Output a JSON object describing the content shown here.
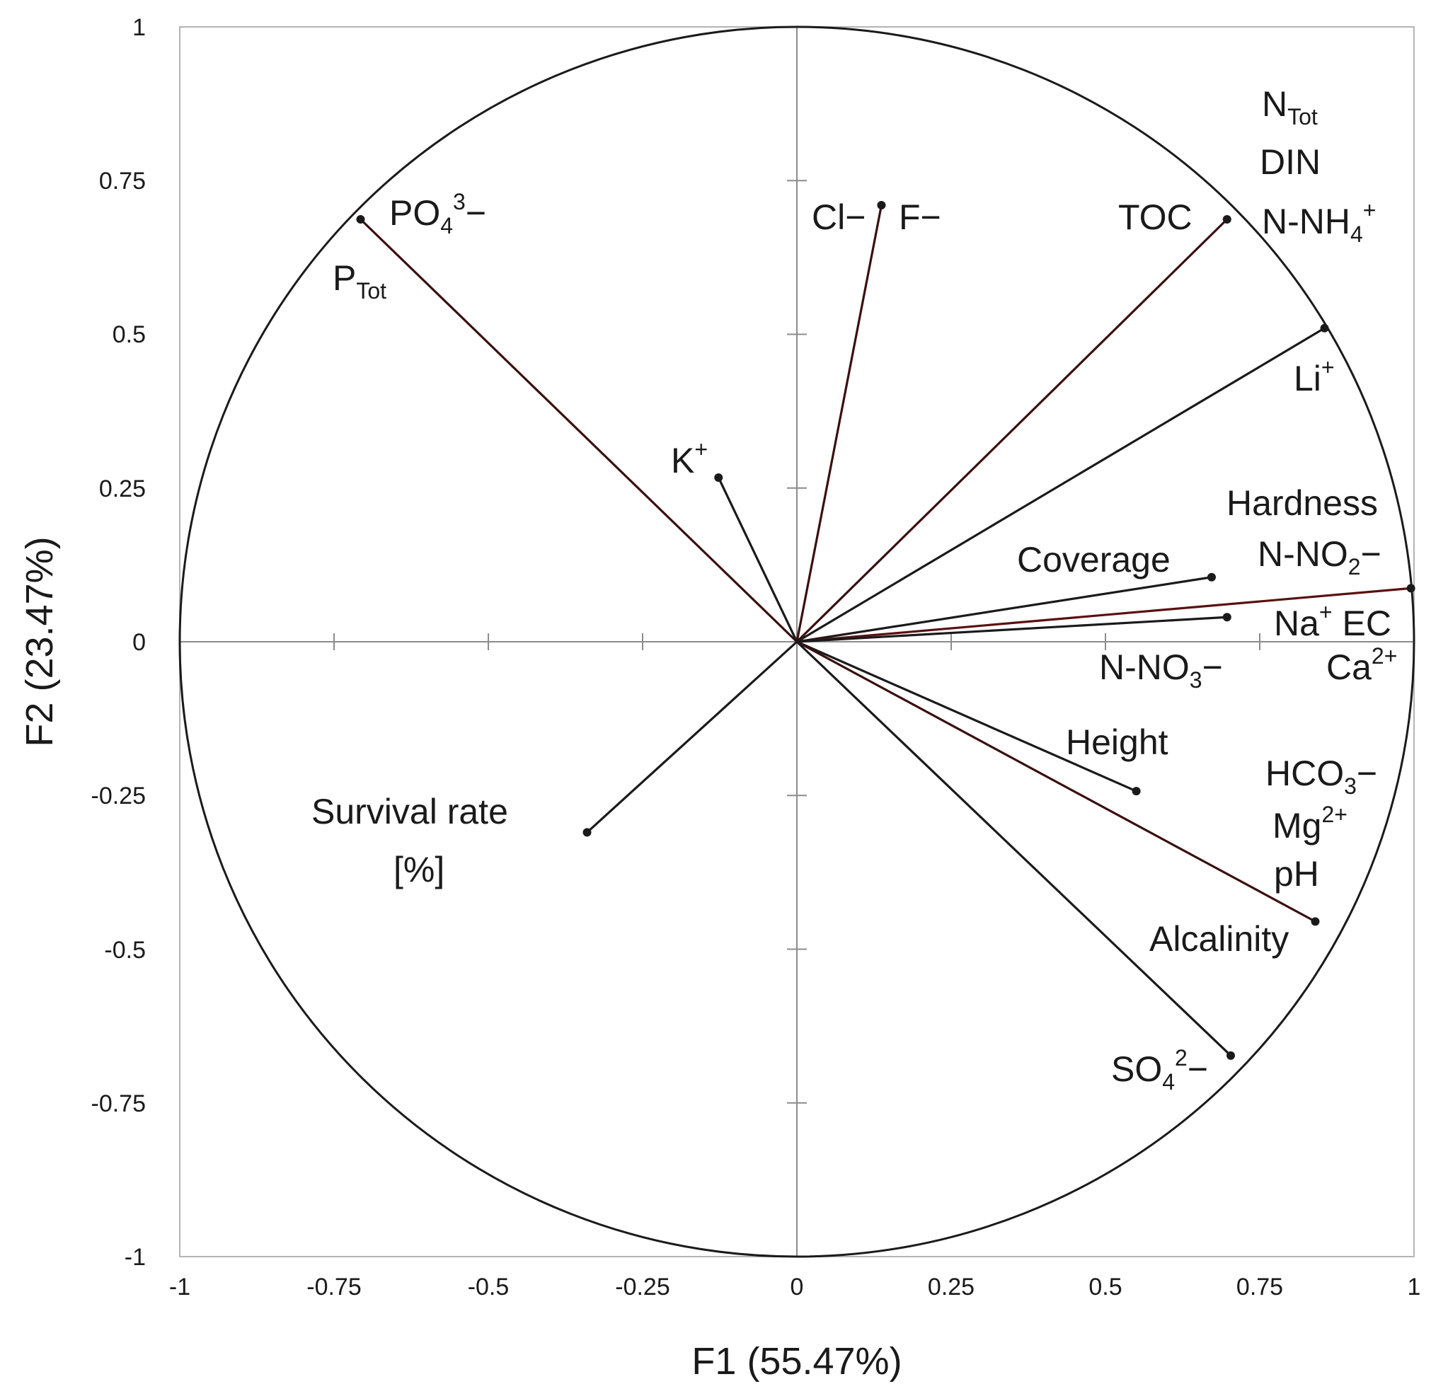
{
  "chart_data": {
    "type": "scatter",
    "subtype": "pca-correlation-circle",
    "xlabel": "F1 (55.47%)",
    "ylabel": "F2 (23.47%)",
    "xlim": [
      -1,
      1
    ],
    "ylim": [
      -1,
      1
    ],
    "x_ticks": [
      "-1",
      "-0.75",
      "-0.5",
      "-0.25",
      "0",
      "0.25",
      "0.5",
      "0.75",
      "1"
    ],
    "y_ticks": [
      "1",
      "0.75",
      "0.5",
      "0.25",
      "0",
      "-0.25",
      "-0.5",
      "-0.75",
      "-1"
    ],
    "vectors": [
      {
        "id": "po4",
        "x": -0.707,
        "y": 0.687,
        "color": "#3a0f0f"
      },
      {
        "id": "cl",
        "x": 0.137,
        "y": 0.71,
        "color": "#3a0f0f"
      },
      {
        "id": "toc",
        "x": 0.697,
        "y": 0.687,
        "color": "#3a0f0f"
      },
      {
        "id": "li",
        "x": 0.855,
        "y": 0.51,
        "color": "#1a1a1a"
      },
      {
        "id": "k",
        "x": -0.127,
        "y": 0.267,
        "color": "#1a1a1a"
      },
      {
        "id": "coverage",
        "x": 0.672,
        "y": 0.105,
        "color": "#1a1a1a"
      },
      {
        "id": "na",
        "x": 0.995,
        "y": 0.087,
        "color": "#5a1010"
      },
      {
        "id": "no3",
        "x": 0.697,
        "y": 0.04,
        "color": "#1a1a1a"
      },
      {
        "id": "height",
        "x": 0.55,
        "y": -0.243,
        "color": "#1a1a1a"
      },
      {
        "id": "alcalinity",
        "x": 0.84,
        "y": -0.455,
        "color": "#3a0f0f"
      },
      {
        "id": "so4",
        "x": 0.703,
        "y": -0.673,
        "color": "#1a1a1a"
      },
      {
        "id": "survival",
        "x": -0.34,
        "y": -0.31,
        "color": "#1a1a1a"
      }
    ],
    "labels": [
      {
        "id": "po4",
        "base": "PO",
        "sub": "4",
        "sup": "3",
        "tail": "−"
      },
      {
        "id": "ptot",
        "base": "P",
        "sub": "Tot",
        "sup": "",
        "tail": ""
      },
      {
        "id": "cl",
        "base": "Cl−",
        "sub": "",
        "sup": "",
        "tail": ""
      },
      {
        "id": "f",
        "base": "F−",
        "sub": "",
        "sup": "",
        "tail": ""
      },
      {
        "id": "toc",
        "base": "TOC",
        "sub": "",
        "sup": "",
        "tail": ""
      },
      {
        "id": "ntot",
        "base": "N",
        "sub": "Tot",
        "sup": "",
        "tail": ""
      },
      {
        "id": "din",
        "base": "DIN",
        "sub": "",
        "sup": "",
        "tail": ""
      },
      {
        "id": "nh4",
        "base": "N-NH",
        "sub": "4",
        "sup": "+",
        "tail": ""
      },
      {
        "id": "li",
        "base": "Li",
        "sub": "",
        "sup": "+",
        "tail": ""
      },
      {
        "id": "k",
        "base": "K",
        "sub": "",
        "sup": "+",
        "tail": ""
      },
      {
        "id": "hardness",
        "base": "Hardness",
        "sub": "",
        "sup": "",
        "tail": ""
      },
      {
        "id": "no2",
        "base": "N-NO",
        "sub": "2",
        "sup": "",
        "tail": "−"
      },
      {
        "id": "coverage",
        "base": "Coverage",
        "sub": "",
        "sup": "",
        "tail": ""
      },
      {
        "id": "na",
        "base": "Na",
        "sub": "",
        "sup": "+",
        "tail": " EC"
      },
      {
        "id": "ca",
        "base": "Ca",
        "sub": "",
        "sup": "2+",
        "tail": ""
      },
      {
        "id": "no3",
        "base": "N-NO",
        "sub": "3",
        "sup": "",
        "tail": "−"
      },
      {
        "id": "height",
        "base": "Height",
        "sub": "",
        "sup": "",
        "tail": ""
      },
      {
        "id": "hco3",
        "base": "HCO",
        "sub": "3",
        "sup": "",
        "tail": "−"
      },
      {
        "id": "mg",
        "base": "Mg",
        "sub": "",
        "sup": "2+",
        "tail": ""
      },
      {
        "id": "ph",
        "base": "pH",
        "sub": "",
        "sup": "",
        "tail": ""
      },
      {
        "id": "alcalinity",
        "base": "Alcalinity",
        "sub": "",
        "sup": "",
        "tail": ""
      },
      {
        "id": "so4",
        "base": "SO",
        "sub": "4",
        "sup": "2",
        "tail": "−"
      },
      {
        "id": "survival1",
        "base": "Survival rate",
        "sub": "",
        "sup": "",
        "tail": ""
      },
      {
        "id": "survival2",
        "base": "[%]",
        "sub": "",
        "sup": "",
        "tail": ""
      }
    ]
  }
}
